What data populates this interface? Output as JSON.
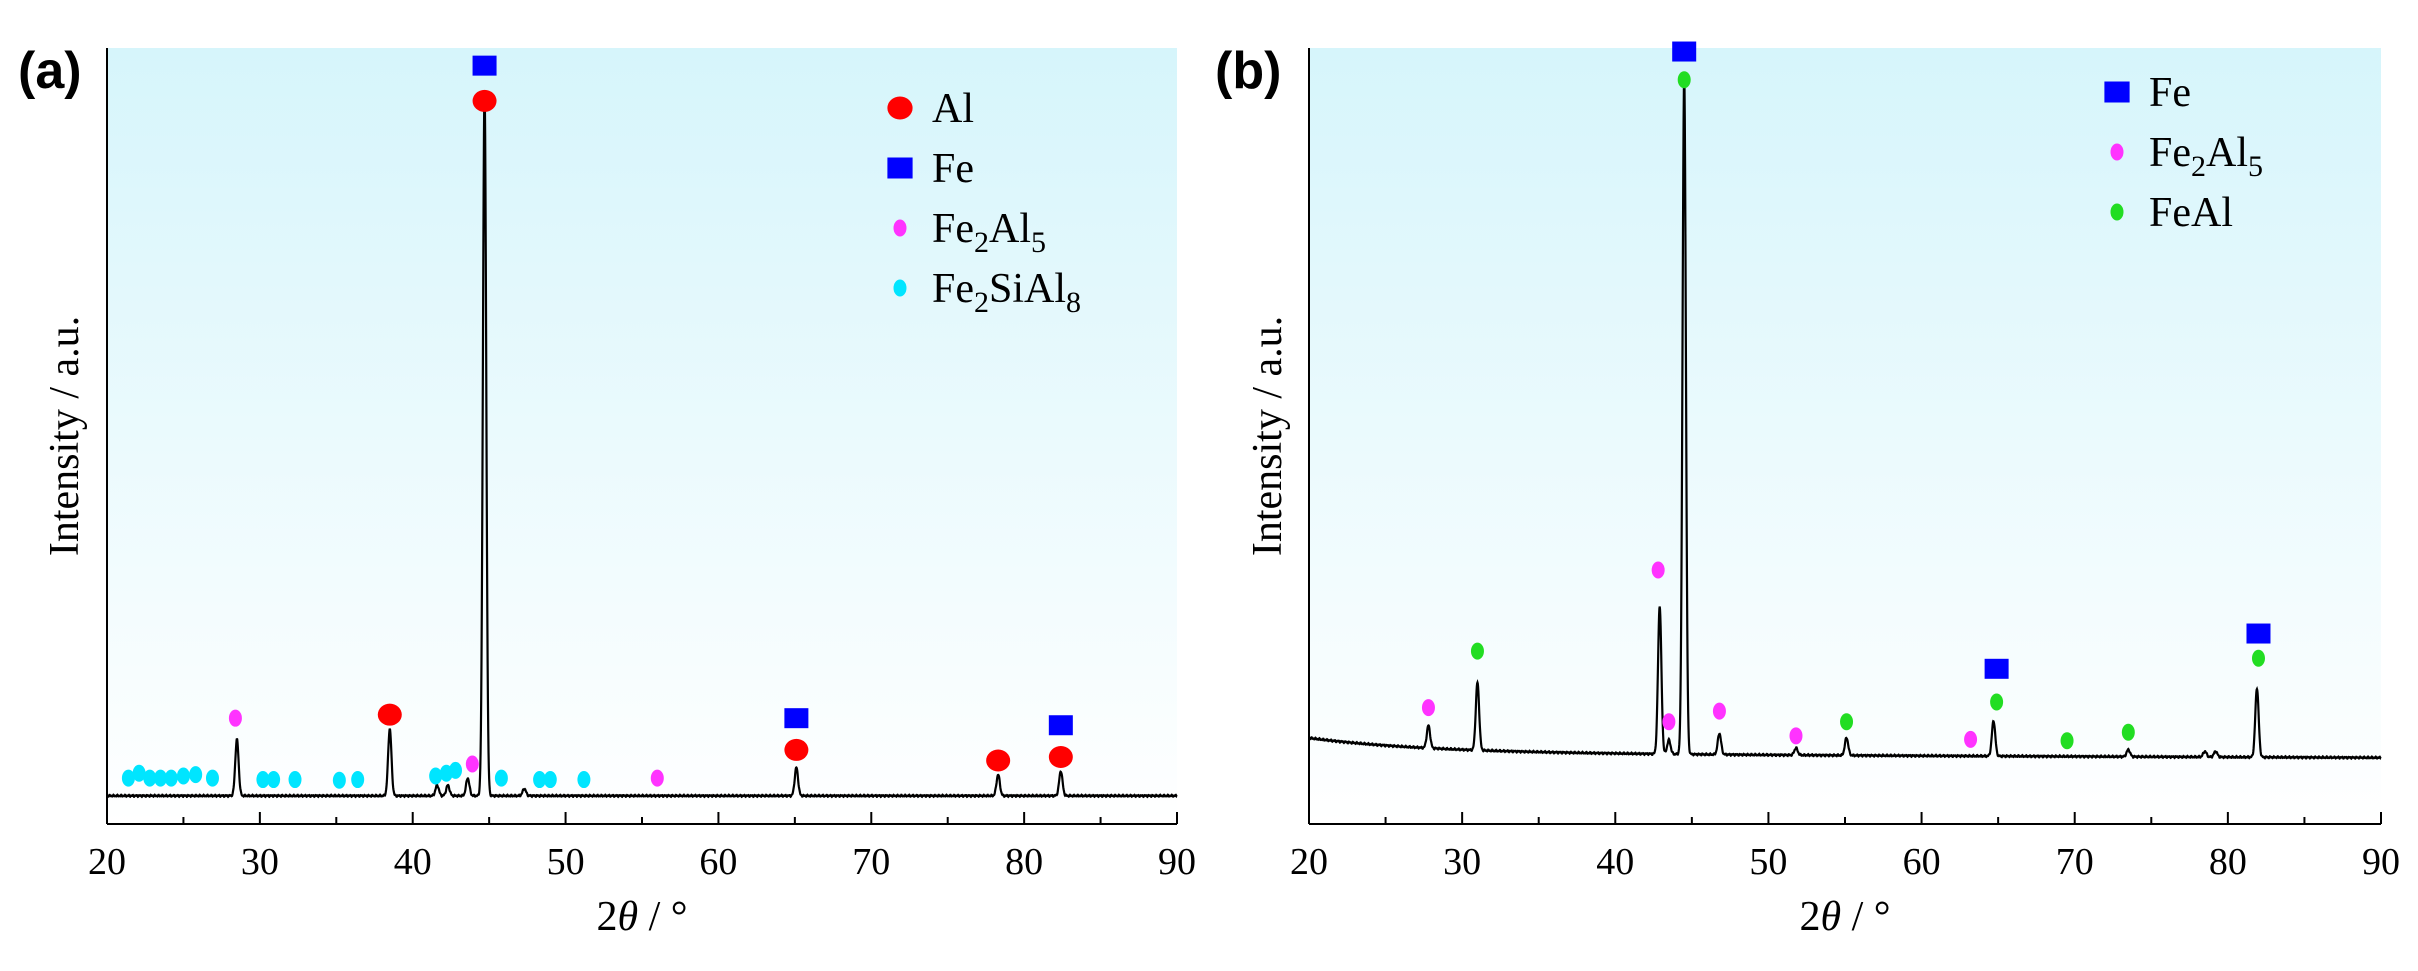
{
  "chart_data": [
    {
      "type": "line",
      "panel_label": "(a)",
      "xlabel": "2θ / °",
      "ylabel": "Intensity / a.u.",
      "xlim": [
        20,
        90
      ],
      "ylim": [
        0,
        110
      ],
      "xticks": [
        20,
        30,
        40,
        50,
        60,
        70,
        80,
        90
      ],
      "baseline": 4,
      "peaks": [
        {
          "x": 28.5,
          "h": 8
        },
        {
          "x": 38.5,
          "h": 9.5
        },
        {
          "x": 41.6,
          "h": 1.5
        },
        {
          "x": 42.3,
          "h": 1.5
        },
        {
          "x": 43.6,
          "h": 2.5
        },
        {
          "x": 44.7,
          "h": 100
        },
        {
          "x": 47.3,
          "h": 1
        },
        {
          "x": 65.1,
          "h": 4
        },
        {
          "x": 78.3,
          "h": 3
        },
        {
          "x": 82.4,
          "h": 3.5
        }
      ],
      "legend": [
        {
          "symbol": "circle",
          "color": "#ff0000",
          "label": "Al"
        },
        {
          "symbol": "square",
          "color": "#0000ff",
          "label": "Fe"
        },
        {
          "symbol": "ellipse",
          "color": "#ff33ff",
          "label": "Fe2Al5",
          "base": "Fe",
          "sub1": "2",
          "mid": "Al",
          "sub2": "5",
          "tail": ""
        },
        {
          "symbol": "ellipse",
          "color": "#00e5ff",
          "label": "Fe2SiAl8",
          "base": "Fe",
          "sub1": "2",
          "mid": "SiAl",
          "sub2": "8",
          "tail": ""
        }
      ],
      "markers": [
        {
          "phase": "Fe",
          "symbol": "square",
          "color": "#0000ff",
          "x": 44.7,
          "y": 107.5
        },
        {
          "phase": "Al",
          "symbol": "circle",
          "color": "#ff0000",
          "x": 44.7,
          "y": 102.5
        },
        {
          "phase": "Al",
          "symbol": "circle",
          "color": "#ff0000",
          "x": 38.5,
          "y": 15.5
        },
        {
          "phase": "Fe",
          "symbol": "square",
          "color": "#0000ff",
          "x": 65.1,
          "y": 15
        },
        {
          "phase": "Al",
          "symbol": "circle",
          "color": "#ff0000",
          "x": 65.1,
          "y": 10.5
        },
        {
          "phase": "Al",
          "symbol": "circle",
          "color": "#ff0000",
          "x": 78.3,
          "y": 9
        },
        {
          "phase": "Fe",
          "symbol": "square",
          "color": "#0000ff",
          "x": 82.4,
          "y": 14
        },
        {
          "phase": "Al",
          "symbol": "circle",
          "color": "#ff0000",
          "x": 82.4,
          "y": 9.5
        },
        {
          "phase": "Fe2Al5",
          "symbol": "ellipse",
          "color": "#ff33ff",
          "x": 28.4,
          "y": 15
        },
        {
          "phase": "Fe2Al5",
          "symbol": "ellipse",
          "color": "#ff33ff",
          "x": 43.9,
          "y": 8.5
        },
        {
          "phase": "Fe2Al5",
          "symbol": "ellipse",
          "color": "#ff33ff",
          "x": 56.0,
          "y": 6.5
        },
        {
          "phase": "Fe2SiAl8",
          "symbol": "ellipse",
          "color": "#00e5ff",
          "x": 21.4,
          "y": 6.5
        },
        {
          "phase": "Fe2SiAl8",
          "symbol": "ellipse",
          "color": "#00e5ff",
          "x": 22.1,
          "y": 7.2
        },
        {
          "phase": "Fe2SiAl8",
          "symbol": "ellipse",
          "color": "#00e5ff",
          "x": 22.8,
          "y": 6.5
        },
        {
          "phase": "Fe2SiAl8",
          "symbol": "ellipse",
          "color": "#00e5ff",
          "x": 23.5,
          "y": 6.5
        },
        {
          "phase": "Fe2SiAl8",
          "symbol": "ellipse",
          "color": "#00e5ff",
          "x": 24.2,
          "y": 6.5
        },
        {
          "phase": "Fe2SiAl8",
          "symbol": "ellipse",
          "color": "#00e5ff",
          "x": 25.0,
          "y": 6.8
        },
        {
          "phase": "Fe2SiAl8",
          "symbol": "ellipse",
          "color": "#00e5ff",
          "x": 25.8,
          "y": 7
        },
        {
          "phase": "Fe2SiAl8",
          "symbol": "ellipse",
          "color": "#00e5ff",
          "x": 26.9,
          "y": 6.5
        },
        {
          "phase": "Fe2SiAl8",
          "symbol": "ellipse",
          "color": "#00e5ff",
          "x": 30.2,
          "y": 6.3
        },
        {
          "phase": "Fe2SiAl8",
          "symbol": "ellipse",
          "color": "#00e5ff",
          "x": 30.9,
          "y": 6.3
        },
        {
          "phase": "Fe2SiAl8",
          "symbol": "ellipse",
          "color": "#00e5ff",
          "x": 32.3,
          "y": 6.3
        },
        {
          "phase": "Fe2SiAl8",
          "symbol": "ellipse",
          "color": "#00e5ff",
          "x": 35.2,
          "y": 6.2
        },
        {
          "phase": "Fe2SiAl8",
          "symbol": "ellipse",
          "color": "#00e5ff",
          "x": 36.4,
          "y": 6.3
        },
        {
          "phase": "Fe2SiAl8",
          "symbol": "ellipse",
          "color": "#00e5ff",
          "x": 41.5,
          "y": 6.8
        },
        {
          "phase": "Fe2SiAl8",
          "symbol": "ellipse",
          "color": "#00e5ff",
          "x": 42.2,
          "y": 7.2
        },
        {
          "phase": "Fe2SiAl8",
          "symbol": "ellipse",
          "color": "#00e5ff",
          "x": 42.8,
          "y": 7.6
        },
        {
          "phase": "Fe2SiAl8",
          "symbol": "ellipse",
          "color": "#00e5ff",
          "x": 45.8,
          "y": 6.5
        },
        {
          "phase": "Fe2SiAl8",
          "symbol": "ellipse",
          "color": "#00e5ff",
          "x": 48.3,
          "y": 6.3
        },
        {
          "phase": "Fe2SiAl8",
          "symbol": "ellipse",
          "color": "#00e5ff",
          "x": 49.0,
          "y": 6.3
        },
        {
          "phase": "Fe2SiAl8",
          "symbol": "ellipse",
          "color": "#00e5ff",
          "x": 51.2,
          "y": 6.3
        }
      ]
    },
    {
      "type": "line",
      "panel_label": "(b)",
      "xlabel": "2θ / °",
      "ylabel": "Intensity / a.u.",
      "xlim": [
        20,
        90
      ],
      "ylim": [
        0,
        110
      ],
      "xticks": [
        20,
        30,
        40,
        50,
        60,
        70,
        80,
        90
      ],
      "baseline": 10,
      "peaks": [
        {
          "x": 27.8,
          "h": 3.2
        },
        {
          "x": 31.0,
          "h": 9.6
        },
        {
          "x": 42.9,
          "h": 21
        },
        {
          "x": 43.5,
          "h": 2
        },
        {
          "x": 44.5,
          "h": 96
        },
        {
          "x": 46.8,
          "h": 3
        },
        {
          "x": 51.8,
          "h": 1
        },
        {
          "x": 55.1,
          "h": 2.5
        },
        {
          "x": 64.7,
          "h": 5
        },
        {
          "x": 73.5,
          "h": 1
        },
        {
          "x": 78.5,
          "h": 0.8
        },
        {
          "x": 79.2,
          "h": 0.8
        },
        {
          "x": 81.9,
          "h": 9.8
        }
      ],
      "legend": [
        {
          "symbol": "square",
          "color": "#0000ff",
          "label": "Fe"
        },
        {
          "symbol": "ellipse",
          "color": "#ff33ff",
          "label": "Fe2Al5",
          "base": "Fe",
          "sub1": "2",
          "mid": "Al",
          "sub2": "5",
          "tail": ""
        },
        {
          "symbol": "ellipse",
          "color": "#22dd22",
          "label": "FeAl"
        }
      ],
      "markers": [
        {
          "phase": "Fe",
          "symbol": "square",
          "color": "#0000ff",
          "x": 44.5,
          "y": 109.5
        },
        {
          "phase": "FeAl",
          "symbol": "ellipse",
          "color": "#22dd22",
          "x": 44.5,
          "y": 105.5
        },
        {
          "phase": "Fe2Al5",
          "symbol": "ellipse",
          "color": "#ff33ff",
          "x": 27.8,
          "y": 16.5
        },
        {
          "phase": "FeAl",
          "symbol": "ellipse",
          "color": "#22dd22",
          "x": 31.0,
          "y": 24.5
        },
        {
          "phase": "Fe2Al5",
          "symbol": "ellipse",
          "color": "#ff33ff",
          "x": 42.8,
          "y": 36
        },
        {
          "phase": "Fe2Al5",
          "symbol": "ellipse",
          "color": "#ff33ff",
          "x": 43.5,
          "y": 14.5
        },
        {
          "phase": "Fe2Al5",
          "symbol": "ellipse",
          "color": "#ff33ff",
          "x": 46.8,
          "y": 16
        },
        {
          "phase": "Fe2Al5",
          "symbol": "ellipse",
          "color": "#ff33ff",
          "x": 51.8,
          "y": 12.5
        },
        {
          "phase": "FeAl",
          "symbol": "ellipse",
          "color": "#22dd22",
          "x": 55.1,
          "y": 14.5
        },
        {
          "phase": "Fe2Al5",
          "symbol": "ellipse",
          "color": "#ff33ff",
          "x": 63.2,
          "y": 12
        },
        {
          "phase": "FeAl",
          "symbol": "ellipse",
          "color": "#22dd22",
          "x": 64.9,
          "y": 17.3
        },
        {
          "phase": "Fe",
          "symbol": "square",
          "color": "#0000ff",
          "x": 64.9,
          "y": 22
        },
        {
          "phase": "FeAl",
          "symbol": "ellipse",
          "color": "#22dd22",
          "x": 69.5,
          "y": 11.8
        },
        {
          "phase": "FeAl",
          "symbol": "ellipse",
          "color": "#22dd22",
          "x": 73.5,
          "y": 13
        },
        {
          "phase": "FeAl",
          "symbol": "ellipse",
          "color": "#22dd22",
          "x": 82.0,
          "y": 23.5
        },
        {
          "phase": "Fe",
          "symbol": "square",
          "color": "#0000ff",
          "x": 82.0,
          "y": 27
        }
      ]
    }
  ]
}
